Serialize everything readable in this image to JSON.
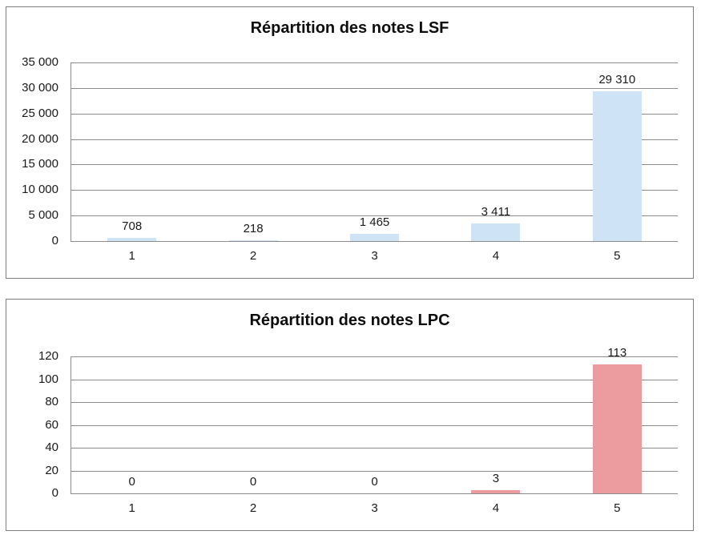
{
  "page": {
    "background": "#ffffff",
    "frame_border_color": "#7f7f7f"
  },
  "chart_data": [
    {
      "type": "bar",
      "title": "Répartition des notes LSF",
      "categories": [
        "1",
        "2",
        "3",
        "4",
        "5"
      ],
      "values": [
        708,
        218,
        1465,
        3411,
        29310
      ],
      "value_labels": [
        "708",
        "218",
        "1 465",
        "3 411",
        "29 310"
      ],
      "xlabel": "",
      "ylabel": "",
      "ylim": [
        0,
        35000
      ],
      "ytick_step": 5000,
      "ytick_labels": [
        "0",
        "5 000",
        "10 000",
        "15 000",
        "20 000",
        "25 000",
        "30 000",
        "35 000"
      ],
      "grid": true,
      "legend": "none",
      "bar_color": "#CEE3F5",
      "gridline_color": "#8c8c8c"
    },
    {
      "type": "bar",
      "title": "Répartition des notes LPC",
      "categories": [
        "1",
        "2",
        "3",
        "4",
        "5"
      ],
      "values": [
        0,
        0,
        0,
        3,
        113
      ],
      "value_labels": [
        "0",
        "0",
        "0",
        "3",
        "113"
      ],
      "xlabel": "",
      "ylabel": "",
      "ylim": [
        0,
        120
      ],
      "ytick_step": 20,
      "ytick_labels": [
        "0",
        "20",
        "40",
        "60",
        "80",
        "100",
        "120"
      ],
      "grid": true,
      "legend": "none",
      "bar_color": "#EC9B9F",
      "gridline_color": "#8c8c8c"
    }
  ]
}
